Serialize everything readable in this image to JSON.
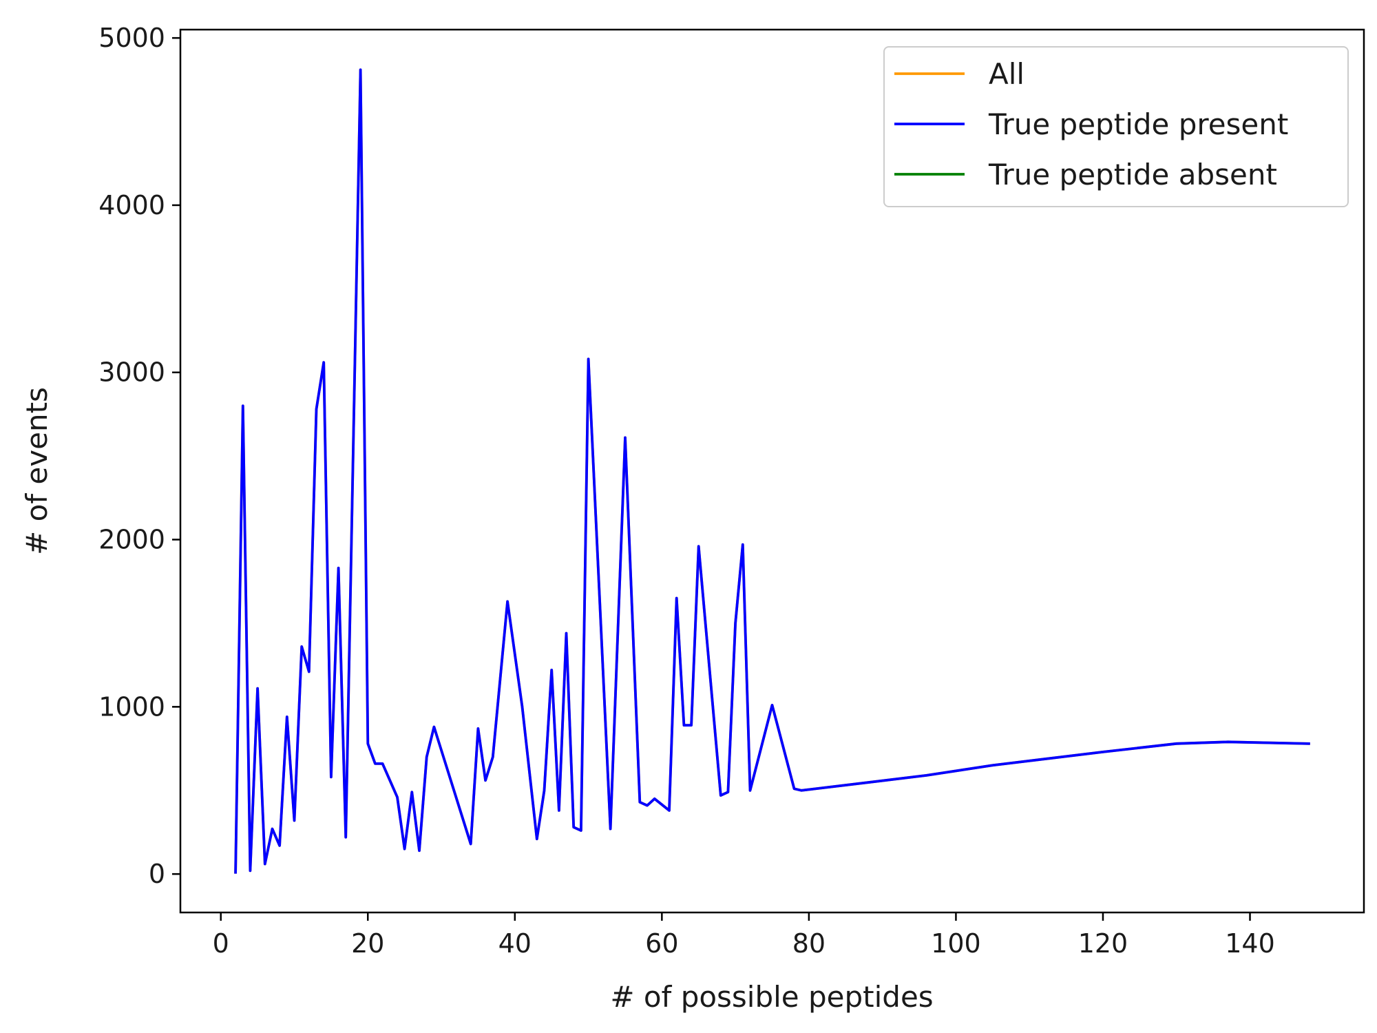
{
  "chart_data": {
    "type": "line",
    "title": "",
    "xlabel": "# of possible peptides",
    "ylabel": "# of events",
    "xlim": [
      -5.5,
      155.5
    ],
    "ylim": [
      -230,
      5050
    ],
    "xticks": [
      0,
      20,
      40,
      60,
      80,
      100,
      120,
      140
    ],
    "yticks": [
      0,
      1000,
      2000,
      3000,
      4000,
      5000
    ],
    "grid": false,
    "legend_position": "top-right",
    "series": [
      {
        "name": "All",
        "color": "#ff9900",
        "x": [
          2,
          3,
          4,
          5,
          6,
          7,
          8,
          9,
          10,
          11,
          12,
          13,
          14,
          15,
          16,
          17,
          19,
          20,
          21,
          22,
          24,
          25,
          26,
          27,
          28,
          29,
          34,
          35,
          36,
          37,
          39,
          41,
          43,
          44,
          45,
          46,
          47,
          48,
          49,
          50,
          53,
          55,
          57,
          58,
          59,
          61,
          62,
          63,
          64,
          65,
          68,
          69,
          70,
          71,
          72,
          75,
          78,
          79,
          96,
          105,
          120,
          130,
          137,
          148
        ],
        "y": [
          10,
          2800,
          20,
          1110,
          60,
          270,
          170,
          940,
          320,
          1360,
          1210,
          2780,
          3060,
          580,
          1830,
          220,
          4810,
          780,
          660,
          660,
          460,
          150,
          490,
          140,
          700,
          880,
          180,
          870,
          560,
          700,
          1630,
          1000,
          210,
          500,
          1220,
          380,
          1440,
          280,
          260,
          3080,
          270,
          2610,
          430,
          410,
          450,
          380,
          1650,
          890,
          890,
          1960,
          470,
          490,
          1500,
          1970,
          500,
          1010,
          510,
          500,
          590,
          650,
          730,
          780,
          790,
          780
        ]
      },
      {
        "name": "True peptide present",
        "color": "#0000ff",
        "x": [
          2,
          3,
          4,
          5,
          6,
          7,
          8,
          9,
          10,
          11,
          12,
          13,
          14,
          15,
          16,
          17,
          19,
          20,
          21,
          22,
          24,
          25,
          26,
          27,
          28,
          29,
          34,
          35,
          36,
          37,
          39,
          41,
          43,
          44,
          45,
          46,
          47,
          48,
          49,
          50,
          53,
          55,
          57,
          58,
          59,
          61,
          62,
          63,
          64,
          65,
          68,
          69,
          70,
          71,
          72,
          75,
          78,
          79,
          96,
          105,
          120,
          130,
          137,
          148
        ],
        "y": [
          10,
          2800,
          20,
          1110,
          60,
          270,
          170,
          940,
          320,
          1360,
          1210,
          2780,
          3060,
          580,
          1830,
          220,
          4810,
          780,
          660,
          660,
          460,
          150,
          490,
          140,
          700,
          880,
          180,
          870,
          560,
          700,
          1630,
          1000,
          210,
          500,
          1220,
          380,
          1440,
          280,
          260,
          3080,
          270,
          2610,
          430,
          410,
          450,
          380,
          1650,
          890,
          890,
          1960,
          470,
          490,
          1500,
          1970,
          500,
          1010,
          510,
          500,
          590,
          650,
          730,
          780,
          790,
          780
        ]
      },
      {
        "name": "True peptide absent",
        "color": "#008000",
        "x": [],
        "y": []
      }
    ]
  }
}
